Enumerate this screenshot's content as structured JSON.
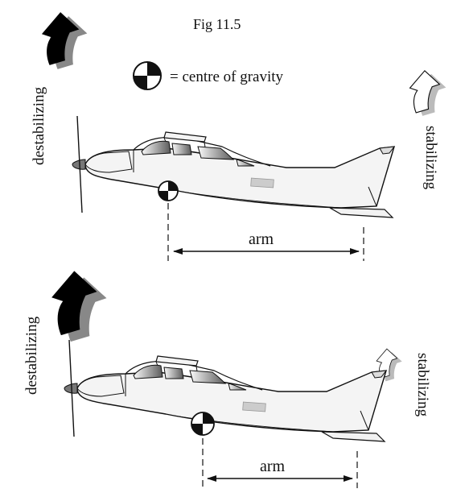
{
  "figure_label": "Fig 11.5",
  "legend": {
    "text": "= centre of gravity",
    "icon": "cg-symbol"
  },
  "panels": [
    {
      "destabilizing_label": "destabilizing",
      "stabilizing_label": "stabilizing",
      "arm_label": "arm",
      "destabilizing_arrow_fill": "#000000",
      "stabilizing_arrow_fill": "#ffffff"
    },
    {
      "destabilizing_label": "destabilizing",
      "stabilizing_label": "stabilizing",
      "arm_label": "arm",
      "destabilizing_arrow_fill": "#000000",
      "stabilizing_arrow_fill": "#ffffff"
    }
  ]
}
